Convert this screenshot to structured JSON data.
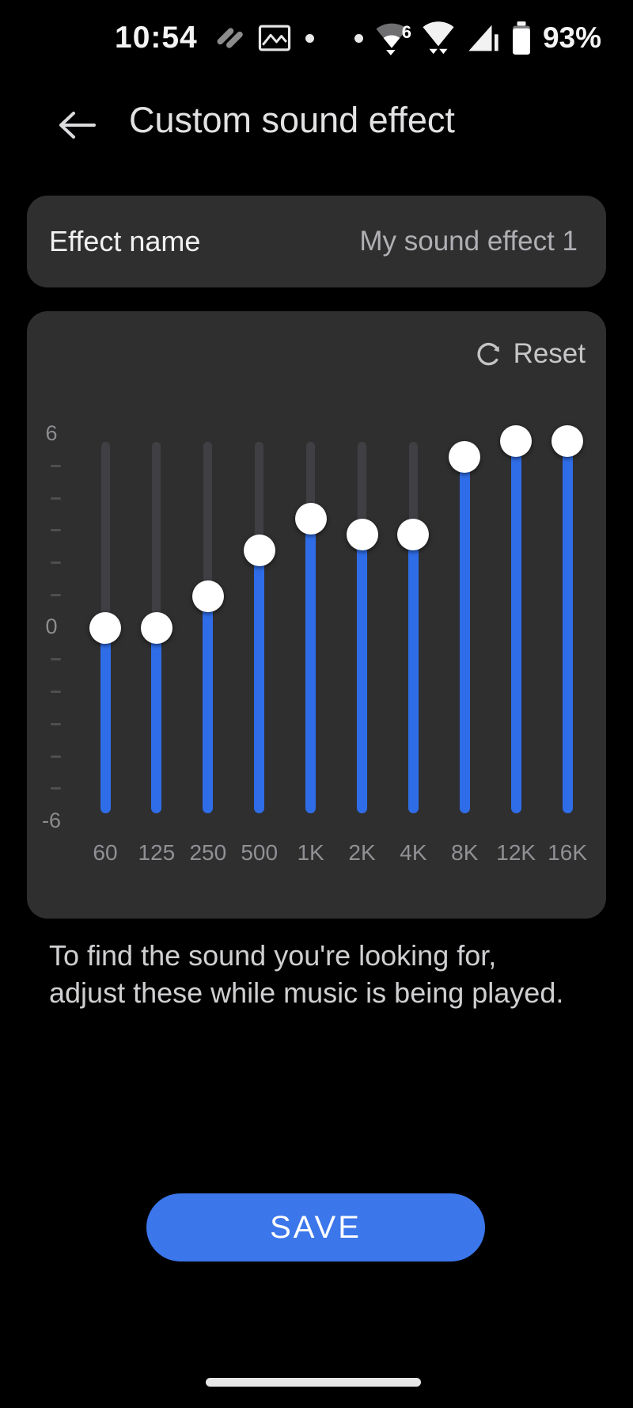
{
  "status_bar": {
    "time": "10:54",
    "battery_percent": "93%",
    "wifi6_badge": "6",
    "icons": [
      "samsung-health-icon",
      "screenshot-image-icon",
      "notification-dot",
      "status-dot",
      "wifi-6-icon",
      "wifi-icon",
      "cell-signal-icon",
      "battery-icon"
    ]
  },
  "header": {
    "title": "Custom sound effect",
    "back_icon": "back-arrow-icon"
  },
  "effect_name_row": {
    "label": "Effect name",
    "value": "My sound effect 1"
  },
  "equalizer": {
    "reset_label": "Reset",
    "reset_icon": "reset-refresh-icon",
    "axis": {
      "max_label": "6",
      "mid_label": "0",
      "min_label": "-6",
      "range_db": [
        -6,
        6
      ]
    },
    "bands": [
      {
        "freq": "60",
        "value": 0
      },
      {
        "freq": "125",
        "value": 0
      },
      {
        "freq": "250",
        "value": 1
      },
      {
        "freq": "500",
        "value": 2.5
      },
      {
        "freq": "1K",
        "value": 3.5
      },
      {
        "freq": "2K",
        "value": 3
      },
      {
        "freq": "4K",
        "value": 3
      },
      {
        "freq": "8K",
        "value": 5.5
      },
      {
        "freq": "12K",
        "value": 6
      },
      {
        "freq": "16K",
        "value": 6
      }
    ],
    "colors": {
      "active": "#2f6de8",
      "inactive": "#404044",
      "thumb": "#ffffff"
    }
  },
  "description": {
    "line1": "To find the sound you're looking for,",
    "line2": "adjust these while music is being played."
  },
  "save_button": {
    "label": "SAVE",
    "color": "#3b76ea"
  }
}
